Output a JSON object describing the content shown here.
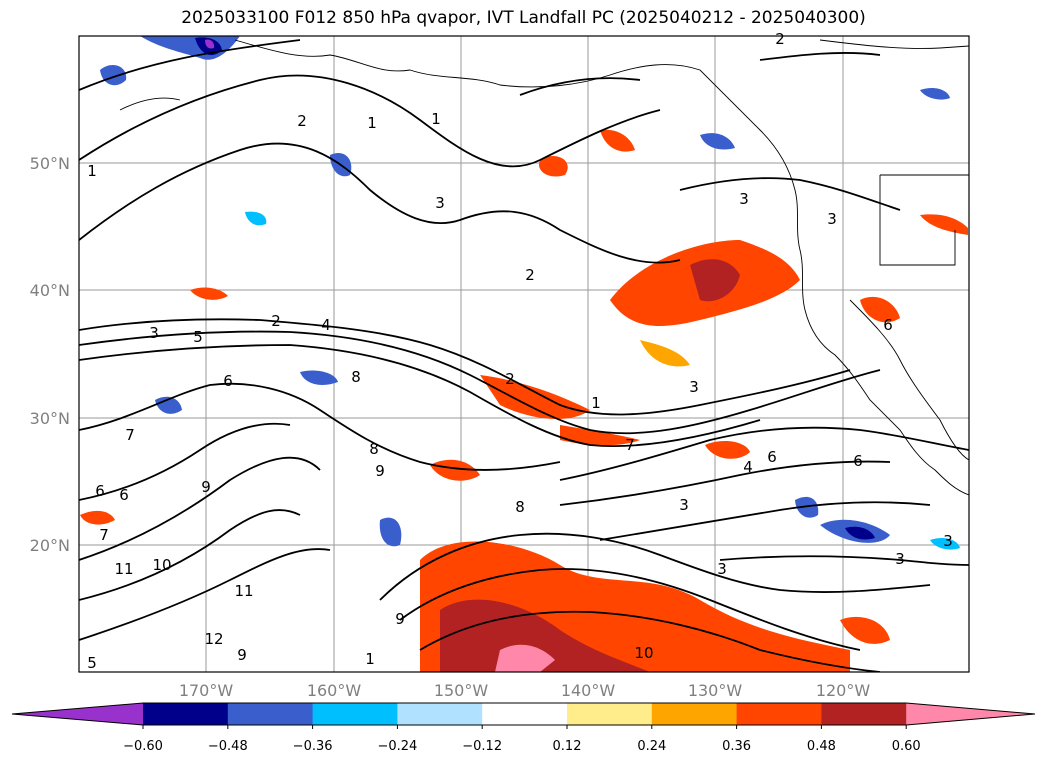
{
  "title": "2025033100 F012 850 hPa qvapor, IVT Landfall PC (2025040212 - 2025040300)",
  "map": {
    "lat_labels": [
      "50°N",
      "40°N",
      "30°N",
      "20°N"
    ],
    "lon_labels": [
      "170°W",
      "160°W",
      "150°W",
      "140°W",
      "130°W",
      "120°W"
    ],
    "contour_labels": [
      "2",
      "1",
      "1",
      "2",
      "1",
      "3",
      "3",
      "3",
      "2",
      "2",
      "4",
      "3",
      "5",
      "2",
      "1",
      "3",
      "6",
      "6",
      "7",
      "8",
      "8",
      "9",
      "8",
      "9",
      "7",
      "6",
      "6",
      "7",
      "11",
      "10",
      "12",
      "9",
      "11",
      "3",
      "3",
      "10",
      "9",
      "1",
      "5",
      "3",
      "6",
      "4",
      "6",
      "3"
    ]
  },
  "colorbar": {
    "tick_labels": [
      "−0.60",
      "−0.48",
      "−0.36",
      "−0.24",
      "−0.12",
      "0.12",
      "0.24",
      "0.36",
      "0.48",
      "0.60"
    ],
    "colors": [
      "#9932cc",
      "#00008b",
      "#3a5fcd",
      "#00bfff",
      "#b0e2ff",
      "#ffffff",
      "#ffec8b",
      "#ffa500",
      "#ff4500",
      "#b22222",
      "#ff88aa"
    ]
  }
}
